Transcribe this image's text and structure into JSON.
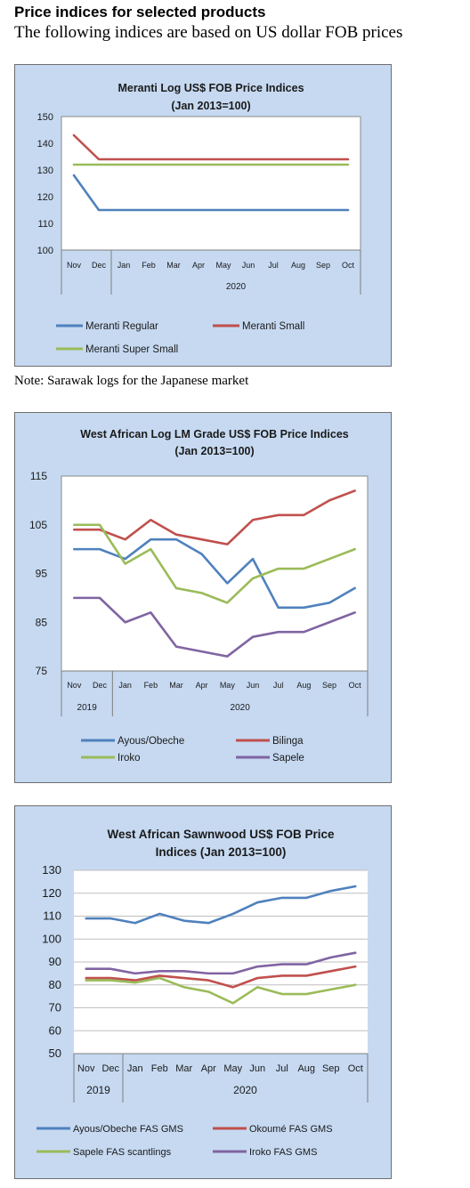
{
  "header": {
    "title": "Price indices for selected products",
    "subtitle": "The following indices are based on US dollar FOB prices"
  },
  "note": "Note: Sarawak logs for the Japanese market",
  "chart_data": [
    {
      "type": "line",
      "title_lines": [
        "Meranti Log US$ FOB Price Indices",
        "(Jan 2013=100)"
      ],
      "categories": [
        "Nov",
        "Dec",
        "Jan",
        "Feb",
        "Mar",
        "Apr",
        "May",
        "Jun",
        "Jul",
        "Aug",
        "Sep",
        "Oct"
      ],
      "year_groups": [
        {
          "label": "",
          "start": 0,
          "end": 1
        },
        {
          "label": "2020",
          "start": 2,
          "end": 11
        }
      ],
      "ylim": [
        100,
        150
      ],
      "yticks": [
        100,
        110,
        120,
        130,
        140,
        150
      ],
      "grid": false,
      "legend_position": "bottom",
      "series": [
        {
          "name": "Meranti Regular",
          "color": "#4f81bd",
          "values": [
            128,
            115,
            115,
            115,
            115,
            115,
            115,
            115,
            115,
            115,
            115,
            115
          ]
        },
        {
          "name": "Meranti Small",
          "color": "#c0504d",
          "values": [
            143,
            134,
            134,
            134,
            134,
            134,
            134,
            134,
            134,
            134,
            134,
            134
          ]
        },
        {
          "name": "Meranti Super Small",
          "color": "#9bbb59",
          "values": [
            132,
            132,
            132,
            132,
            132,
            132,
            132,
            132,
            132,
            132,
            132,
            132
          ]
        }
      ]
    },
    {
      "type": "line",
      "title_lines": [
        "West African Log LM Grade US$ FOB Price Indices",
        "(Jan 2013=100)"
      ],
      "categories": [
        "Nov",
        "Dec",
        "Jan",
        "Feb",
        "Mar",
        "Apr",
        "May",
        "Jun",
        "Jul",
        "Aug",
        "Sep",
        "Oct"
      ],
      "year_groups": [
        {
          "label": "2019",
          "start": 0,
          "end": 1
        },
        {
          "label": "2020",
          "start": 2,
          "end": 11
        }
      ],
      "ylim": [
        75,
        115
      ],
      "yticks": [
        75,
        85,
        95,
        105,
        115
      ],
      "grid": false,
      "legend_position": "bottom",
      "series": [
        {
          "name": "Ayous/Obeche",
          "color": "#4f81bd",
          "values": [
            100,
            100,
            98,
            102,
            102,
            99,
            93,
            98,
            88,
            88,
            89,
            92
          ]
        },
        {
          "name": "Bilinga",
          "color": "#c0504d",
          "values": [
            104,
            104,
            102,
            106,
            103,
            102,
            101,
            106,
            107,
            107,
            110,
            112
          ]
        },
        {
          "name": "Iroko",
          "color": "#9bbb59",
          "values": [
            105,
            105,
            97,
            100,
            92,
            91,
            89,
            94,
            96,
            96,
            98,
            100
          ]
        },
        {
          "name": "Sapele",
          "color": "#8064a2",
          "values": [
            90,
            90,
            85,
            87,
            80,
            79,
            78,
            82,
            83,
            83,
            85,
            87
          ]
        }
      ]
    },
    {
      "type": "line",
      "title_lines": [
        "West African Sawnwood US$ FOB Price",
        "Indices (Jan 2013=100)"
      ],
      "categories": [
        "Nov",
        "Dec",
        "Jan",
        "Feb",
        "Mar",
        "Apr",
        "May",
        "Jun",
        "Jul",
        "Aug",
        "Sep",
        "Oct"
      ],
      "year_groups": [
        {
          "label": "2019",
          "start": 0,
          "end": 1
        },
        {
          "label": "2020",
          "start": 2,
          "end": 11
        }
      ],
      "ylim": [
        50,
        130
      ],
      "yticks": [
        50,
        60,
        70,
        80,
        90,
        100,
        110,
        120,
        130
      ],
      "grid": true,
      "legend_position": "bottom",
      "series": [
        {
          "name": "Ayous/Obeche FAS GMS",
          "color": "#4f81bd",
          "values": [
            109,
            109,
            107,
            111,
            108,
            107,
            111,
            116,
            118,
            118,
            121,
            123
          ]
        },
        {
          "name": "Okoumé FAS GMS",
          "color": "#c0504d",
          "values": [
            83,
            83,
            82,
            84,
            83,
            82,
            79,
            83,
            84,
            84,
            86,
            88
          ]
        },
        {
          "name": "Sapele FAS scantlings",
          "color": "#9bbb59",
          "values": [
            82,
            82,
            81,
            83,
            79,
            77,
            72,
            79,
            76,
            76,
            78,
            80
          ]
        },
        {
          "name": "Iroko FAS GMS",
          "color": "#8064a2",
          "values": [
            87,
            87,
            85,
            86,
            86,
            85,
            85,
            88,
            89,
            89,
            92,
            94
          ]
        }
      ]
    }
  ]
}
